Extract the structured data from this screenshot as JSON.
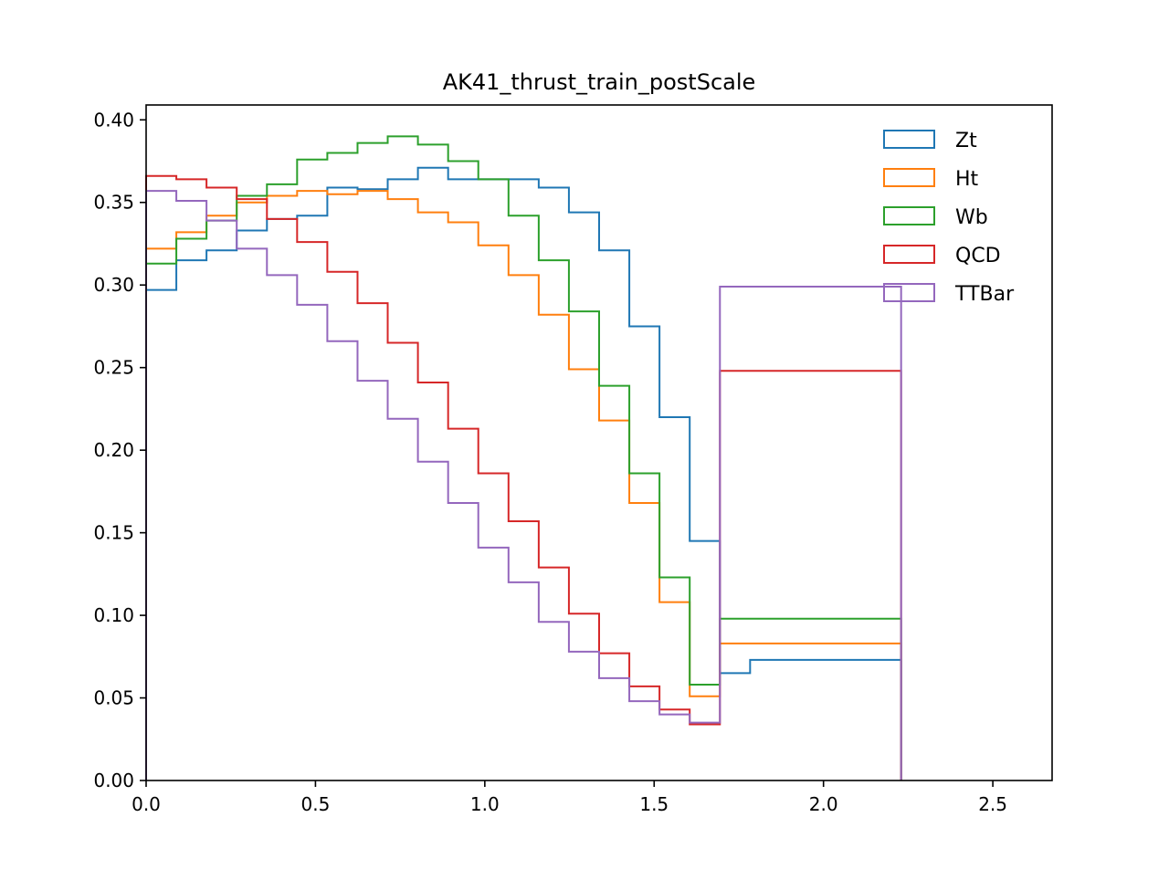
{
  "chart_data": {
    "type": "step",
    "title": "AK41_thrust_train_postScale",
    "xlabel": "",
    "ylabel": "",
    "xlim": [
      0.0,
      2.675
    ],
    "ylim": [
      0.0,
      0.409
    ],
    "xticks": [
      "0.0",
      "0.5",
      "1.0",
      "1.5",
      "2.0",
      "2.5"
    ],
    "yticks": [
      "0.00",
      "0.05",
      "0.10",
      "0.15",
      "0.20",
      "0.25",
      "0.30",
      "0.35",
      "0.40"
    ],
    "grid": false,
    "legend_position": "top-right",
    "bin_edges": [
      0.0,
      0.0892,
      0.1783,
      0.2675,
      0.3567,
      0.4458,
      0.535,
      0.6242,
      0.7133,
      0.8025,
      0.8917,
      0.9808,
      1.07,
      1.1592,
      1.2483,
      1.3375,
      1.4267,
      1.5158,
      1.605,
      1.6942,
      1.7833,
      1.8725,
      1.9617,
      2.0508,
      2.14,
      2.2292
    ],
    "bin_edges_note": "",
    "series": [
      {
        "name": "Zt",
        "color": "#1f77b4",
        "values": [
          0.297,
          0.315,
          0.321,
          0.333,
          0.34,
          0.342,
          0.359,
          0.358,
          0.364,
          0.371,
          0.364,
          0.364,
          0.364,
          0.359,
          0.344,
          0.321,
          0.275,
          0.22,
          0.145,
          0.065,
          0.073,
          0.073,
          0.073,
          0.073,
          0.073
        ]
      },
      {
        "name": "Ht",
        "color": "#ff7f0e",
        "values": [
          0.322,
          0.332,
          0.342,
          0.35,
          0.354,
          0.357,
          0.355,
          0.357,
          0.352,
          0.344,
          0.338,
          0.324,
          0.306,
          0.282,
          0.249,
          0.218,
          0.168,
          0.108,
          0.051,
          0.083,
          0.083,
          0.083,
          0.083,
          0.083,
          0.083
        ]
      },
      {
        "name": "Wb",
        "color": "#2ca02c",
        "values": [
          0.313,
          0.328,
          0.339,
          0.354,
          0.361,
          0.376,
          0.38,
          0.386,
          0.39,
          0.385,
          0.375,
          0.364,
          0.342,
          0.315,
          0.284,
          0.239,
          0.186,
          0.123,
          0.058,
          0.098,
          0.098,
          0.098,
          0.098,
          0.098,
          0.098
        ]
      },
      {
        "name": "QCD",
        "color": "#d62728",
        "values": [
          0.366,
          0.364,
          0.359,
          0.352,
          0.34,
          0.326,
          0.308,
          0.289,
          0.265,
          0.241,
          0.213,
          0.186,
          0.157,
          0.129,
          0.101,
          0.077,
          0.057,
          0.043,
          0.034,
          0.248,
          0.248,
          0.248,
          0.248,
          0.248,
          0.248
        ]
      },
      {
        "name": "TTBar",
        "color": "#9467bd",
        "values": [
          0.357,
          0.351,
          0.339,
          0.322,
          0.306,
          0.288,
          0.266,
          0.242,
          0.219,
          0.193,
          0.168,
          0.141,
          0.12,
          0.096,
          0.078,
          0.062,
          0.048,
          0.04,
          0.035,
          0.299,
          0.299,
          0.299,
          0.299,
          0.299,
          0.299
        ]
      }
    ]
  }
}
